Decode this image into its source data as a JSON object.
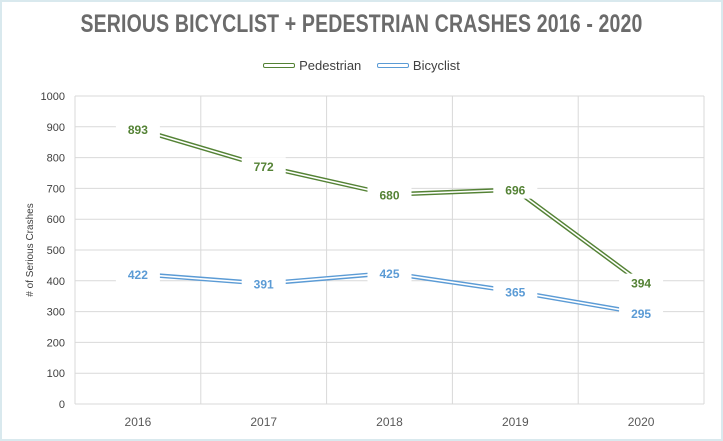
{
  "chart_data": {
    "type": "line",
    "title": "SERIOUS BICYCLIST + PEDESTRIAN CRASHES 2016 - 2020",
    "xlabel": "",
    "ylabel": "# of Serious Crashes",
    "categories": [
      "2016",
      "2017",
      "2018",
      "2019",
      "2020"
    ],
    "ylim": [
      0,
      1000
    ],
    "yticks": [
      0,
      100,
      200,
      300,
      400,
      500,
      600,
      700,
      800,
      900,
      1000
    ],
    "grid": true,
    "legend_position": "top",
    "series": [
      {
        "name": "Pedestrian",
        "values": [
          893,
          772,
          680,
          696,
          394
        ],
        "color": "#548235"
      },
      {
        "name": "Bicyclist",
        "values": [
          422,
          391,
          425,
          365,
          295
        ],
        "color": "#5b9bd5"
      }
    ]
  }
}
